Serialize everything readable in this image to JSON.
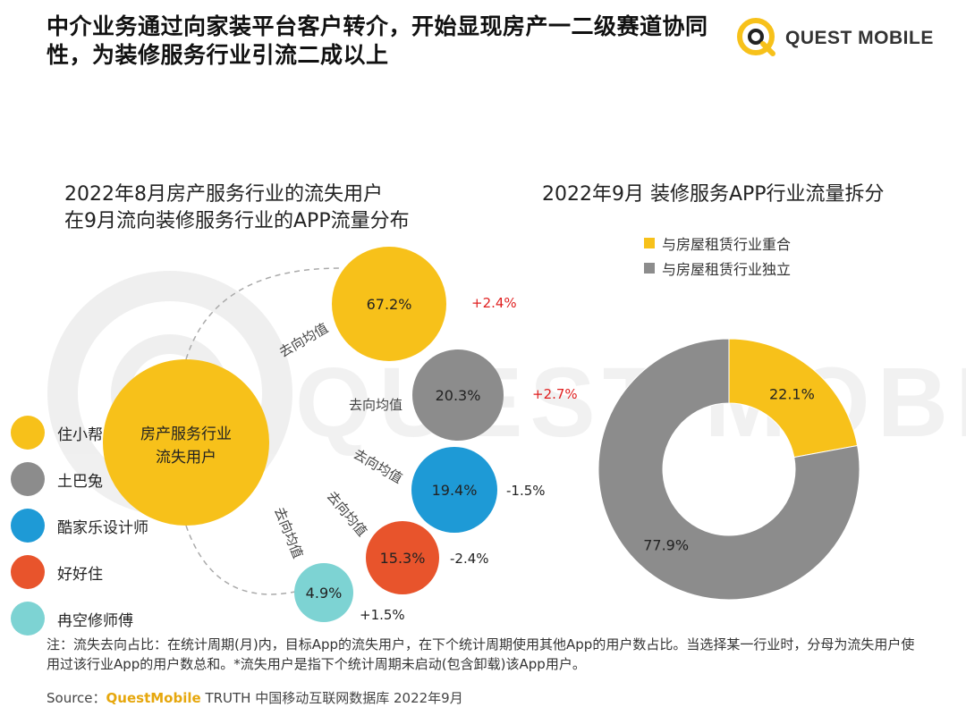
{
  "title": "中介业务通过向家装平台客户转介，开始显现房产一二级赛道协同性，为装修服务行业引流二成以上",
  "logo": {
    "brand": "QUEST MOBILE"
  },
  "watermark": "QUEST MOBILE",
  "left_subtitle": [
    "2022年8月房产服务行业的流失用户",
    "在9月流向装修服务行业的APP流量分布"
  ],
  "right_subtitle": "2022年9月 装修服务APP行业流量拆分",
  "center_label": [
    "房产服务行业",
    "流失用户"
  ],
  "edge_label": "去向均值",
  "note": "注：流失去向占比：在统计周期(月)内，目标App的流失用户，在下个统计周期使用其他App的用户数占比。当选择某一行业时，分母为流失用户使用过该行业App的用户数总和。*流失用户是指下个统计周期未启动(包含卸载)该App用户。",
  "source": {
    "prefix": "Source：",
    "brand": "QuestMobile",
    "suffix": " TRUTH 中国移动互联网数据库 2022年9月"
  },
  "colors": {
    "yellow": "#f7c11a",
    "gray": "#8c8c8c",
    "blue": "#1e9ad6",
    "orange": "#e8542c",
    "teal": "#7dd3d3",
    "red": "#e02020"
  },
  "chart_data": [
    {
      "type": "bubble",
      "title": "2022年8月房产服务行业的流失用户 在9月流向装修服务行业的APP流量分布",
      "series": [
        {
          "name": "住小帮",
          "value": 67.2,
          "label": "67.2%",
          "delta": "+2.4%",
          "color": "#f7c11a"
        },
        {
          "name": "土巴兔",
          "value": 20.3,
          "label": "20.3%",
          "delta": "+2.7%",
          "color": "#8c8c8c"
        },
        {
          "name": "酷家乐设计师",
          "value": 19.4,
          "label": "19.4%",
          "delta": "-1.5%",
          "color": "#1e9ad6"
        },
        {
          "name": "好好住",
          "value": 15.3,
          "label": "15.3%",
          "delta": "-2.4%",
          "color": "#e8542c"
        },
        {
          "name": "冉空修师傅",
          "value": 4.9,
          "label": "4.9%",
          "delta": "+1.5%",
          "color": "#7dd3d3"
        }
      ]
    },
    {
      "type": "pie",
      "title": "2022年9月 装修服务APP行业流量拆分",
      "legend": "top",
      "slices": [
        {
          "name": "与房屋租赁行业重合",
          "value": 22.1,
          "label": "22.1%",
          "color": "#f7c11a"
        },
        {
          "name": "与房屋租赁行业独立",
          "value": 77.9,
          "label": "77.9%",
          "color": "#8c8c8c"
        }
      ]
    }
  ]
}
